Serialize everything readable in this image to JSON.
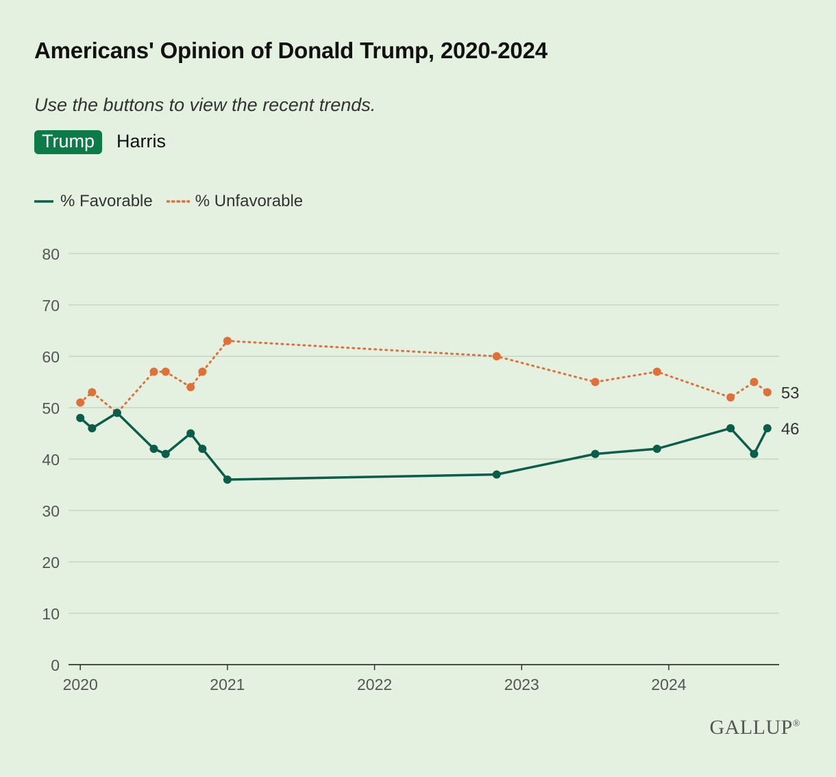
{
  "header": {
    "title": "Americans' Opinion of Donald Trump, 2020-2024",
    "subtitle": "Use the buttons to view the recent trends."
  },
  "buttons": [
    {
      "label": "Trump",
      "active": true
    },
    {
      "label": "Harris",
      "active": false
    }
  ],
  "logo": "GALLUP",
  "logo_mark": "®",
  "colors": {
    "favorable": "#0b5c4a",
    "unfavorable": "#e0703a",
    "grid": "#c7d6c3",
    "axis": "#333333",
    "button_active": "#0d7a4a"
  },
  "chart_data": {
    "type": "line",
    "title": "Americans' Opinion of Donald Trump, 2020-2024",
    "xlabel": "",
    "ylabel": "",
    "ylim": [
      0,
      80
    ],
    "yticks": [
      0,
      10,
      20,
      30,
      40,
      50,
      60,
      70,
      80
    ],
    "xlim": [
      2019.92,
      2024.75
    ],
    "xticks": [
      {
        "value": 2020,
        "label": "2020"
      },
      {
        "value": 2021,
        "label": "2021"
      },
      {
        "value": 2022,
        "label": "2022"
      },
      {
        "value": 2023,
        "label": "2023"
      },
      {
        "value": 2024,
        "label": "2024"
      }
    ],
    "legend_position": "top-left",
    "series": [
      {
        "name": "% Favorable",
        "style": "solid",
        "color": "#0b5c4a",
        "x": [
          2020.0,
          2020.08,
          2020.25,
          2020.5,
          2020.58,
          2020.75,
          2020.83,
          2021.0,
          2022.83,
          2023.5,
          2023.92,
          2024.42,
          2024.58,
          2024.67
        ],
        "values": [
          48,
          46,
          49,
          42,
          41,
          45,
          42,
          36,
          37,
          41,
          42,
          46,
          41,
          46
        ],
        "end_label": "46"
      },
      {
        "name": "% Unfavorable",
        "style": "dotted",
        "color": "#e0703a",
        "x": [
          2020.0,
          2020.08,
          2020.25,
          2020.5,
          2020.58,
          2020.75,
          2020.83,
          2021.0,
          2022.83,
          2023.5,
          2023.92,
          2024.42,
          2024.58,
          2024.67
        ],
        "values": [
          51,
          53,
          49,
          57,
          57,
          54,
          57,
          63,
          60,
          55,
          57,
          52,
          55,
          53
        ],
        "end_label": "53"
      }
    ]
  }
}
